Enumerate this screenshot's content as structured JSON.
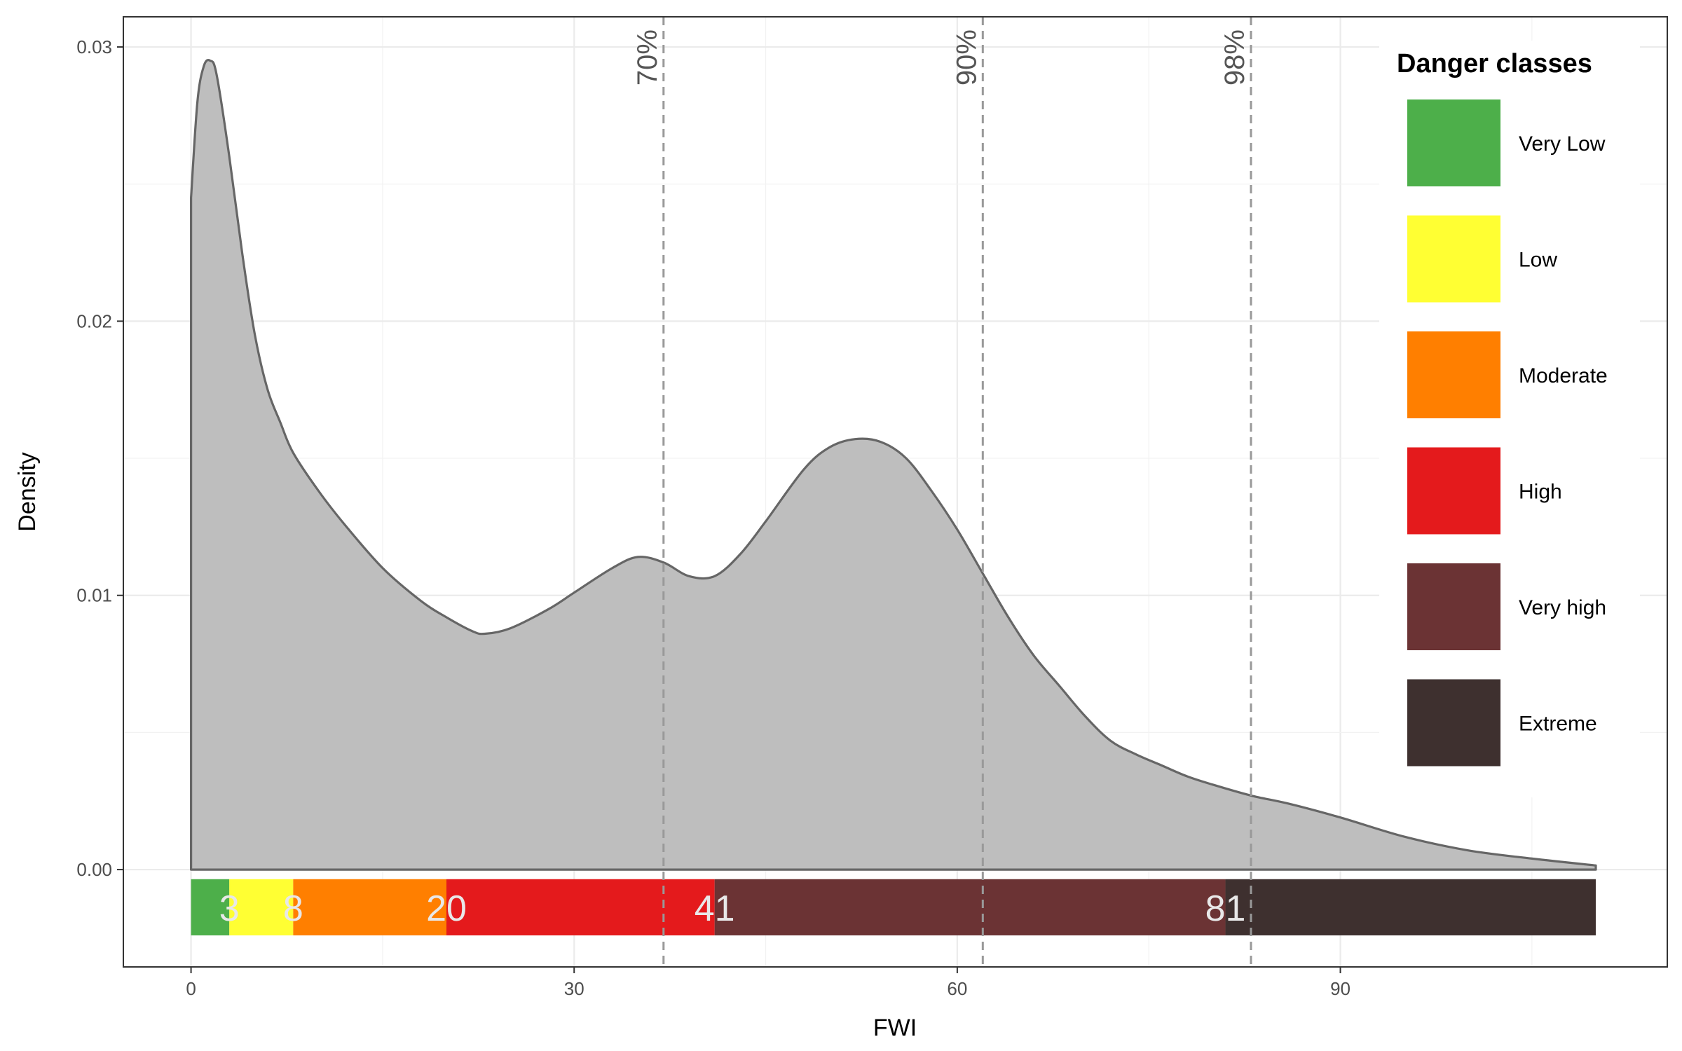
{
  "chart_data": {
    "type": "area",
    "xlabel": "FWI",
    "ylabel": "Density",
    "xlim": [
      -5.3,
      115.6
    ],
    "ylim": [
      -0.00355,
      0.0311
    ],
    "x_ticks": [
      0,
      30,
      60,
      90
    ],
    "x_tick_labels": [
      "0",
      "30",
      "60",
      "90"
    ],
    "y_ticks": [
      0.0,
      0.01,
      0.02,
      0.03
    ],
    "y_tick_labels": [
      "0.00",
      "0.01",
      "0.02",
      "0.03"
    ],
    "grid": true,
    "density_color": "#bebebe",
    "density_line_color": "#666666",
    "density": {
      "x": [
        0,
        0.5,
        1,
        1.5,
        2,
        3,
        4,
        5,
        6,
        7,
        8,
        10,
        12,
        15,
        18,
        20,
        22,
        23,
        25,
        28,
        30,
        33,
        35,
        37,
        39,
        41,
        43,
        45,
        48,
        50,
        52,
        54,
        56,
        58,
        60,
        62,
        64,
        66,
        68,
        70,
        72,
        74,
        76,
        78,
        80,
        83,
        86,
        90,
        95,
        100,
        105,
        110
      ],
      "y": [
        0.0245,
        0.028,
        0.0293,
        0.0295,
        0.029,
        0.026,
        0.0225,
        0.0195,
        0.0175,
        0.0163,
        0.0152,
        0.0138,
        0.0126,
        0.011,
        0.0098,
        0.0092,
        0.0087,
        0.0086,
        0.0088,
        0.0095,
        0.0101,
        0.011,
        0.0114,
        0.0112,
        0.0107,
        0.0107,
        0.0115,
        0.0127,
        0.0146,
        0.0154,
        0.0157,
        0.0156,
        0.015,
        0.0138,
        0.0124,
        0.0108,
        0.0092,
        0.0078,
        0.0067,
        0.0056,
        0.0047,
        0.0042,
        0.0038,
        0.0034,
        0.0031,
        0.0027,
        0.0024,
        0.0019,
        0.0012,
        0.0007,
        0.0004,
        0.00015
      ]
    },
    "percentiles": [
      {
        "label": "70%",
        "x": 37
      },
      {
        "label": "90%",
        "x": 62
      },
      {
        "label": "98%",
        "x": 83
      }
    ],
    "danger_bar": {
      "y_top": -0.00035,
      "y_bottom": -0.0024,
      "segments": [
        {
          "name": "Very Low",
          "from": 0,
          "to": 3,
          "color": "#4daf4a",
          "label": ""
        },
        {
          "name": "Low",
          "from": 3,
          "to": 8,
          "color": "#ffff33",
          "label": "3"
        },
        {
          "name": "Moderate",
          "from": 8,
          "to": 20,
          "color": "#ff7f00",
          "label": "8"
        },
        {
          "name": "High",
          "from": 20,
          "to": 41,
          "color": "#e41a1c",
          "label": "20"
        },
        {
          "name": "Very high",
          "from": 41,
          "to": 81,
          "color": "#6b3334",
          "label": "41"
        },
        {
          "name": "Extreme",
          "from": 81,
          "to": 110,
          "color": "#3e302f",
          "label": "81"
        }
      ]
    },
    "legend": {
      "title": "Danger classes",
      "position": "top-right",
      "items": [
        {
          "label": "Very Low",
          "color": "#4daf4a"
        },
        {
          "label": "Low",
          "color": "#ffff33"
        },
        {
          "label": "Moderate",
          "color": "#ff7f00"
        },
        {
          "label": "High",
          "color": "#e41a1c"
        },
        {
          "label": "Very high",
          "color": "#6b3334"
        },
        {
          "label": "Extreme",
          "color": "#3e302f"
        }
      ]
    }
  }
}
